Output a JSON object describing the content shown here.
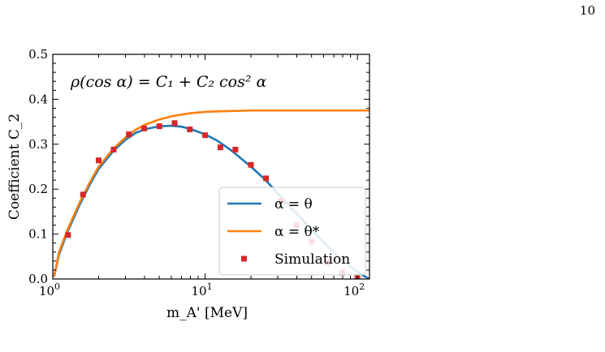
{
  "page_number": "10",
  "chart_data": {
    "type": "line",
    "x_scale": "log",
    "xlim": [
      1.0,
      120
    ],
    "ylim": [
      0.0,
      0.5
    ],
    "xlabel": "m_A' [MeV]",
    "ylabel": "Coefficient C_2",
    "annotation": "ρ(cos α) = C₁ + C₂ cos² α",
    "x_ticks": [
      {
        "value": 1,
        "label": "10",
        "exp": "0"
      },
      {
        "value": 10,
        "label": "10",
        "exp": "1"
      },
      {
        "value": 100,
        "label": "10",
        "exp": "2"
      }
    ],
    "y_ticks": [
      {
        "value": 0.0,
        "label": "0.0"
      },
      {
        "value": 0.1,
        "label": "0.1"
      },
      {
        "value": 0.2,
        "label": "0.2"
      },
      {
        "value": 0.3,
        "label": "0.3"
      },
      {
        "value": 0.4,
        "label": "0.4"
      },
      {
        "value": 0.5,
        "label": "0.5"
      }
    ],
    "legend_position": "lower-right",
    "series": [
      {
        "name": "α = θ",
        "kind": "line",
        "color": "#1f77b4",
        "points": [
          [
            1.02,
            0.005
          ],
          [
            1.1,
            0.055
          ],
          [
            1.25,
            0.105
          ],
          [
            1.5,
            0.165
          ],
          [
            1.75,
            0.21
          ],
          [
            2.0,
            0.245
          ],
          [
            2.5,
            0.285
          ],
          [
            3.0,
            0.31
          ],
          [
            3.5,
            0.325
          ],
          [
            4.0,
            0.333
          ],
          [
            5.0,
            0.34
          ],
          [
            6.0,
            0.341
          ],
          [
            7.0,
            0.339
          ],
          [
            8.0,
            0.334
          ],
          [
            10.0,
            0.322
          ],
          [
            12.0,
            0.308
          ],
          [
            15.0,
            0.285
          ],
          [
            20.0,
            0.25
          ],
          [
            25.0,
            0.22
          ],
          [
            30.0,
            0.19
          ],
          [
            40.0,
            0.145
          ],
          [
            50.0,
            0.11
          ],
          [
            60.0,
            0.082
          ],
          [
            70.0,
            0.06
          ],
          [
            80.0,
            0.042
          ],
          [
            90.0,
            0.028
          ],
          [
            100.0,
            0.016
          ],
          [
            110.0,
            0.007
          ],
          [
            120.0,
            0.0
          ]
        ]
      },
      {
        "name": "α = θ*",
        "kind": "line",
        "color": "#ff7f0e",
        "points": [
          [
            1.02,
            0.005
          ],
          [
            1.1,
            0.06
          ],
          [
            1.25,
            0.11
          ],
          [
            1.5,
            0.17
          ],
          [
            1.75,
            0.215
          ],
          [
            2.0,
            0.25
          ],
          [
            2.5,
            0.29
          ],
          [
            3.0,
            0.315
          ],
          [
            3.5,
            0.332
          ],
          [
            4.0,
            0.343
          ],
          [
            5.0,
            0.355
          ],
          [
            6.0,
            0.362
          ],
          [
            7.0,
            0.366
          ],
          [
            8.0,
            0.369
          ],
          [
            10.0,
            0.372
          ],
          [
            15.0,
            0.374
          ],
          [
            20.0,
            0.375
          ],
          [
            30.0,
            0.375
          ],
          [
            60.0,
            0.375
          ],
          [
            120.0,
            0.375
          ]
        ]
      },
      {
        "name": "Simulation",
        "kind": "scatter",
        "color": "#d62728",
        "points": [
          [
            1.26,
            0.098
          ],
          [
            1.58,
            0.188
          ],
          [
            2.0,
            0.264
          ],
          [
            2.51,
            0.288
          ],
          [
            3.16,
            0.322
          ],
          [
            3.98,
            0.335
          ],
          [
            5.01,
            0.34
          ],
          [
            6.31,
            0.347
          ],
          [
            7.94,
            0.333
          ],
          [
            10.0,
            0.32
          ],
          [
            12.6,
            0.293
          ],
          [
            15.8,
            0.288
          ],
          [
            20.0,
            0.254
          ],
          [
            25.1,
            0.224
          ],
          [
            31.6,
            0.174
          ],
          [
            39.8,
            0.12
          ],
          [
            50.1,
            0.083
          ],
          [
            63.1,
            0.036
          ],
          [
            79.4,
            0.014
          ],
          [
            100.0,
            0.004
          ]
        ]
      }
    ]
  }
}
